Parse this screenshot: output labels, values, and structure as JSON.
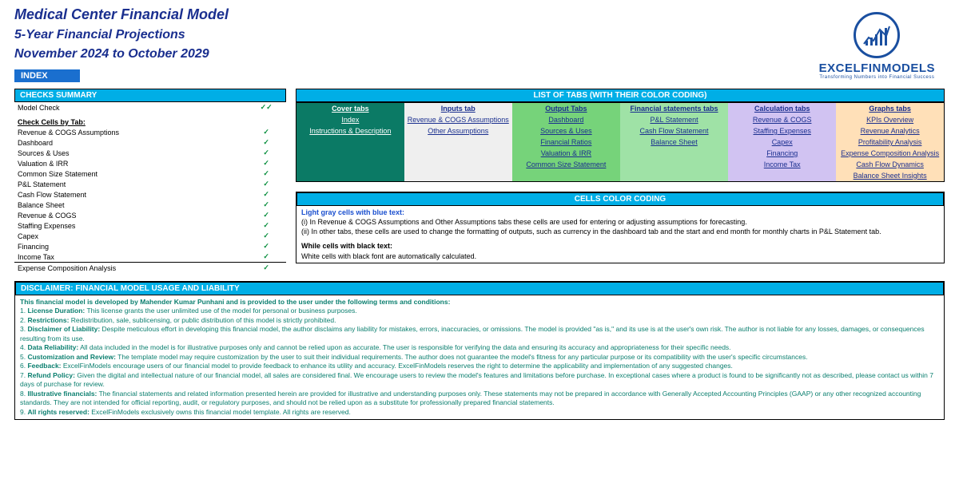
{
  "titles": {
    "line1": "Medical Center Financial Model",
    "line2": "5-Year Financial Projections",
    "line3": "November 2024 to October 2029"
  },
  "logo": {
    "brand": "EXCELFINMODELS",
    "tagline": "Transforming Numbers into Financial Success"
  },
  "index_label": "INDEX",
  "checks": {
    "header": "CHECKS  SUMMARY",
    "model_check_label": "Model Check",
    "model_check_marks": "✓✓",
    "by_tab_label": "Check Cells by Tab:",
    "rows": [
      "Revenue & COGS Assumptions",
      "Dashboard",
      "Sources & Uses",
      "Valuation & IRR",
      "Common Size Statement",
      "P&L Statement",
      "Cash Flow Statement",
      "Balance Sheet",
      "Revenue & COGS",
      "Staffing Expenses",
      "Capex",
      "Financing",
      "Income Tax",
      "Expense Composition Analysis"
    ],
    "tick": "✓"
  },
  "tabs": {
    "header": "LIST OF TABS (WITH THEIR COLOR CODING)",
    "columns": [
      {
        "label": "Cover tabs",
        "bg": "#0b7a65",
        "fg": "#ffffff"
      },
      {
        "label": "Inputs tab",
        "bg": "#efefef",
        "fg": "#1a2f8f"
      },
      {
        "label": "Output Tabs",
        "bg": "#76d37a",
        "fg": "#1a2f8f"
      },
      {
        "label": "Financial statements tabs",
        "bg": "#9fe2a6",
        "fg": "#1a2f8f"
      },
      {
        "label": "Calculation tabs",
        "bg": "#d1c3f2",
        "fg": "#1a2f8f"
      },
      {
        "label": "Graphs tabs",
        "bg": "#ffe0b8",
        "fg": "#1a2f8f"
      }
    ],
    "cells": [
      [
        "Index",
        "Revenue & COGS Assumptions",
        "Dashboard",
        "P&L Statement",
        "Revenue & COGS",
        "KPIs Overview"
      ],
      [
        "Instructions & Description",
        "Other Assumptions",
        "Sources & Uses",
        "Cash Flow Statement",
        "Staffing Expenses",
        "Revenue Analytics"
      ],
      [
        "",
        "",
        "Financial Ratios",
        "Balance Sheet",
        "Capex",
        "Profitability Analysis"
      ],
      [
        "",
        "",
        "Valuation & IRR",
        "",
        "Financing",
        "Expense Composition Analysis"
      ],
      [
        "",
        "",
        "Common Size Statement",
        "",
        "Income Tax",
        "Cash Flow Dynamics"
      ],
      [
        "",
        "",
        "",
        "",
        "",
        "Balance Sheet Insights"
      ]
    ]
  },
  "coding": {
    "header": "CELLS COLOR CODING",
    "blue_label": "Light gray cells with blue text:",
    "line1": "(i) In Revenue & COGS Assumptions and Other Assumptions tabs these cells are used for entering or adjusting assumptions for forecasting.",
    "line2": "(ii) In other tabs, these cells are used to change the formatting of outputs, such as currency in the dashboard tab and the start and end month for monthly charts in P&L Statement tab.",
    "black_label": "While cells with black text:",
    "line3": "White cells with black font are automatically calculated."
  },
  "disclaimer": {
    "header": "DISCLAIMER: FINANCIAL MODEL USAGE AND LIABILITY",
    "lead": "This financial model  is developed by Mahender Kumar Punhani and is provided to the user under the following terms and conditions:",
    "items": [
      {
        "n": "1.",
        "label": "License Duration:",
        "text": " This license grants the user unlimited use of the model for personal or business purposes."
      },
      {
        "n": "2.",
        "label": "Restrictions:",
        "text": " Redistribution, sale, sublicensing, or public distribution of this model is strictly prohibited."
      },
      {
        "n": "3.",
        "label": "Disclaimer of Liability:",
        "text": " Despite meticulous effort in developing this financial model, the author disclaims any liability for mistakes, errors, inaccuracies, or omissions. The model is provided \"as is,\" and its use is at the user's own risk. The author is  not liable for any  losses, damages, or consequences resulting from its use."
      },
      {
        "n": "4.",
        "label": "Data Reliability:",
        "text": " All data included in the model is for illustrative purposes only and cannot be relied upon as accurate. The user is  responsible for verifying the data and ensuring its accuracy and appropriateness for their specific needs."
      },
      {
        "n": "5.",
        "label": "Customization and Review:",
        "text": " The template model may require customization by the user to suit their individual requirements. The author does not guarantee the model's fitness for any  particular purpose or its compatibility with the user's specific circumstances."
      },
      {
        "n": "6.",
        "label": "Feedback:",
        "text": " ExcelFinModels encourage users of our financial model to provide feedback to enhance its utility and accuracy. ExcelFinModels reserves the right to determine the applicability and implementation of any suggested changes."
      },
      {
        "n": "7.",
        "label": "Refund Policy:",
        "text": " Given the digital and intellectual nature of our financial model, all sales are considered final. We encourage users to review the model's features and limitations before purchase. In exceptional cases where a product is found to be  significantly not as described, please contact us within 7 days of purchase for review."
      },
      {
        "n": "8.",
        "label": "Illustrative financials:",
        "text": " The financial statements and related information presented herein are provided for illustrative and understanding purposes only. These statements may not be prepared in accordance with Generally Accepted Accounting Principles (GAAP) or any other  recognized accounting standards. They are not intended for official reporting, audit, or regulatory purposes, and should not be relied upon as a substitute for professionally prepared financial statements."
      },
      {
        "n": "9.",
        "label": "All rights reserved:",
        "text": " ExcelFinModels exclusively owns this financial model template. All rights are reserved."
      }
    ]
  },
  "colors": {
    "header_blue": "#00aee6",
    "title_navy": "#1a2f8f",
    "brand_blue": "#1a4fa0",
    "check_green": "#0a8f3e",
    "teal": "#0b7f6f"
  }
}
